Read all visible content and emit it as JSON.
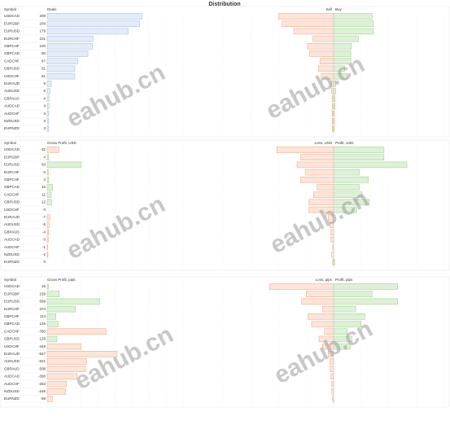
{
  "title": "Distribution",
  "watermark": "eahub.cn",
  "panels": [
    {
      "symbol_header": "Symbol",
      "value_header": "Deals",
      "color": "#e3ecf8",
      "border": "#9db8dd",
      "xlim": [
        0,
        300
      ],
      "categories": [
        "USDCAD",
        "EURGBP",
        "EURUSD",
        "EURCHF",
        "GBPCHF",
        "GBPCAD",
        "CADCHF",
        "GBPUSD",
        "USDCHF",
        "EURAUD",
        "AUDUSD",
        "GBPAUD",
        "AUDCAD",
        "AUDCHF",
        "NZDUSD",
        "EURNZD"
      ],
      "values": [
        209,
        204,
        179,
        101,
        100,
        90,
        67,
        61,
        61,
        9,
        6,
        4,
        4,
        3,
        3,
        3
      ],
      "right": {
        "xlim": [
          -160,
          160
        ],
        "series": [
          {
            "name": "Sell",
            "color": "#fde4d9",
            "border": "#f0a07c",
            "values": [
              80,
              75,
              58,
              30,
              38,
              35,
              20,
              22,
              18,
              4,
              3,
              2,
              2,
              2,
              2,
              2
            ]
          },
          {
            "name": "Buy",
            "color": "#dff0d8",
            "border": "#8fcf7f",
            "values": [
              56,
              58,
              58,
              36,
              26,
              25,
              25,
              16,
              20,
              3,
              3,
              2,
              2,
              1,
              1,
              1
            ]
          }
        ]
      }
    },
    {
      "symbol_header": "Symbol",
      "value_header": "Gross Profit, USD",
      "color": "#dff0d8",
      "border": "#8fcf7f",
      "neg_color": "#fde4d9",
      "neg_border": "#f0a07c",
      "xlim": [
        0,
        370
      ],
      "categories": [
        "USDCAD",
        "EURGBP",
        "EURUSD",
        "EURCHF",
        "GBPCHF",
        "GBPCAD",
        "CADCHF",
        "GBPUSD",
        "USDCHF",
        "EURAUD",
        "AUDUSD",
        "GBPAUD",
        "AUDCAD",
        "AUDCHF",
        "NZDUSD",
        "EURNZD"
      ],
      "values": [
        -32,
        4,
        93,
        -3,
        4,
        15,
        11,
        12,
        0,
        -7,
        -5,
        -4,
        -3,
        -1,
        -2,
        0
      ],
      "right": {
        "xlim": [
          -120,
          120
        ],
        "series": [
          {
            "name": "Loss, USD",
            "color": "#fde4d9",
            "border": "#f0a07c",
            "values": [
              62,
              36,
              40,
              31,
              36,
              18,
              22,
              27,
              27,
              6,
              4,
              3,
              3,
              1,
              2,
              1
            ]
          },
          {
            "name": "Profit, USD",
            "color": "#dff0d8",
            "border": "#8fcf7f",
            "values": [
              55,
              55,
              80,
              28,
              38,
              28,
              31,
              39,
              25,
              0,
              0,
              0,
              0,
              0,
              0,
              1
            ]
          }
        ]
      }
    },
    {
      "symbol_header": "Symbol",
      "value_header": "Gross Profit, pips",
      "color": "#dff0d8",
      "border": "#8fcf7f",
      "neg_color": "#fde4d9",
      "neg_border": "#f0a07c",
      "xlim": [
        0,
        1800
      ],
      "categories": [
        "USDCAD",
        "EURGBP",
        "EURUSD",
        "EURCHF",
        "GBPCHF",
        "GBPCAD",
        "CADCHF",
        "GBPUSD",
        "USDCHF",
        "EURAUD",
        "AUDUSD",
        "GBPAUD",
        "AUDCAD",
        "AUDCHF",
        "NZDUSD",
        "EURNZD"
      ],
      "values": [
        16,
        159,
        699,
        373,
        114,
        146,
        -780,
        128,
        -448,
        -927,
        -521,
        -508,
        -398,
        -253,
        -246,
        -68
      ],
      "right": {
        "xlim": [
          -1200,
          1200
        ],
        "series": [
          {
            "name": "Loss, pips",
            "color": "#fde4d9",
            "border": "#f0a07c",
            "values": [
              700,
              300,
              350,
              120,
              280,
              240,
              100,
              160,
              120,
              60,
              40,
              40,
              30,
              20,
              20,
              10
            ]
          },
          {
            "name": "Profit, pips",
            "color": "#dff0d8",
            "border": "#8fcf7f",
            "values": [
              700,
              420,
              700,
              240,
              340,
              300,
              150,
              200,
              180,
              0,
              0,
              0,
              0,
              0,
              0,
              0
            ]
          }
        ]
      }
    }
  ]
}
